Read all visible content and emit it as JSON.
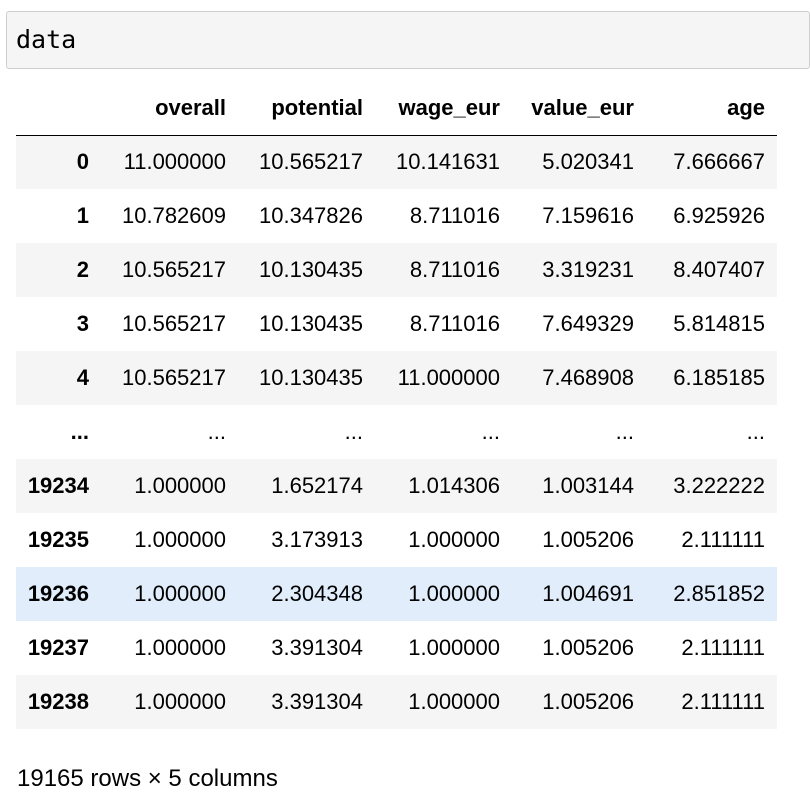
{
  "code_cell": {
    "source": "data"
  },
  "dataframe": {
    "columns": [
      "",
      "overall",
      "potential",
      "wage_eur",
      "value_eur",
      "age"
    ],
    "rows": [
      {
        "index": "0",
        "values": [
          "11.000000",
          "10.565217",
          "10.141631",
          "5.020341",
          "7.666667"
        ]
      },
      {
        "index": "1",
        "values": [
          "10.782609",
          "10.347826",
          "8.711016",
          "7.159616",
          "6.925926"
        ]
      },
      {
        "index": "2",
        "values": [
          "10.565217",
          "10.130435",
          "8.711016",
          "3.319231",
          "8.407407"
        ]
      },
      {
        "index": "3",
        "values": [
          "10.565217",
          "10.130435",
          "8.711016",
          "7.649329",
          "5.814815"
        ]
      },
      {
        "index": "4",
        "values": [
          "10.565217",
          "10.130435",
          "11.000000",
          "7.468908",
          "6.185185"
        ]
      },
      {
        "index": "...",
        "values": [
          "...",
          "...",
          "...",
          "...",
          "..."
        ]
      },
      {
        "index": "19234",
        "values": [
          "1.000000",
          "1.652174",
          "1.014306",
          "1.003144",
          "3.222222"
        ]
      },
      {
        "index": "19235",
        "values": [
          "1.000000",
          "3.173913",
          "1.000000",
          "1.005206",
          "2.111111"
        ]
      },
      {
        "index": "19236",
        "values": [
          "1.000000",
          "2.304348",
          "1.000000",
          "1.004691",
          "2.851852"
        ]
      },
      {
        "index": "19237",
        "values": [
          "1.000000",
          "3.391304",
          "1.000000",
          "1.005206",
          "2.111111"
        ]
      },
      {
        "index": "19238",
        "values": [
          "1.000000",
          "3.391304",
          "1.000000",
          "1.005206",
          "2.111111"
        ]
      }
    ],
    "hovered_row": "19236",
    "shape_text": "19165 rows × 5 columns"
  },
  "colors": {
    "stripe": "#f5f5f5",
    "hover": "#e1edfa",
    "cell_background": "#f5f5f5",
    "cell_border": "#cfcfcf"
  }
}
